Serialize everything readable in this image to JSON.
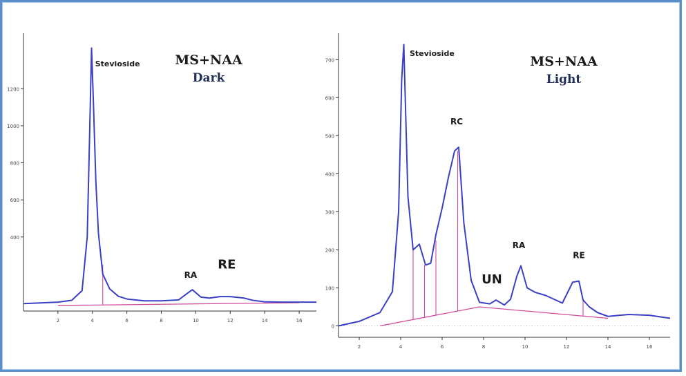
{
  "chart_data": [
    {
      "type": "line",
      "title": "MS+NAA",
      "subtitle": "Dark",
      "xlabel": "",
      "ylabel": "",
      "xlim": [
        0,
        17
      ],
      "ylim": [
        0,
        1500
      ],
      "x_ticks": [
        2,
        4,
        6,
        8,
        10,
        12,
        14,
        16
      ],
      "y_ticks": [
        400,
        600,
        800,
        1000,
        1200
      ],
      "series": [
        {
          "x": [
            0,
            1,
            2,
            2.8,
            3.4,
            3.7,
            3.85,
            3.95,
            4.05,
            4.2,
            4.35,
            4.6,
            5.0,
            5.5,
            6,
            7,
            8,
            9,
            9.5,
            9.8,
            10.3,
            10.8,
            11.4,
            12,
            12.8,
            13.3,
            14,
            15,
            16,
            17
          ],
          "y": [
            40,
            44,
            48,
            58,
            110,
            400,
            1000,
            1420,
            1150,
            700,
            420,
            200,
            120,
            80,
            65,
            55,
            55,
            60,
            95,
            115,
            75,
            70,
            78,
            78,
            70,
            58,
            50,
            48,
            48,
            48
          ]
        }
      ],
      "baseline": [
        [
          2,
          30
        ],
        [
          16,
          45
        ]
      ],
      "drop_lines": [
        {
          "x": 4.6,
          "y": 250
        }
      ],
      "annotations": [
        {
          "text": "Stevioside",
          "x": 4.0,
          "y": 1320
        },
        {
          "text": "RA",
          "x": 9.7,
          "y": 180
        },
        {
          "text": "RE",
          "x": 11.8,
          "y": 230
        }
      ]
    },
    {
      "type": "line",
      "title": "MS+NAA",
      "subtitle": "Light",
      "xlabel": "",
      "ylabel": "",
      "xlim": [
        1,
        17
      ],
      "ylim": [
        -30,
        770
      ],
      "x_ticks": [
        2,
        4,
        6,
        8,
        10,
        12,
        14,
        16
      ],
      "y_ticks": [
        0,
        100,
        200,
        300,
        400,
        500,
        600,
        700
      ],
      "series": [
        {
          "x": [
            1,
            2,
            3,
            3.6,
            3.9,
            4.05,
            4.15,
            4.35,
            4.6,
            4.9,
            5.2,
            5.45,
            5.7,
            6.0,
            6.3,
            6.6,
            6.8,
            7.05,
            7.4,
            7.8,
            8.3,
            8.6,
            9.0,
            9.3,
            9.6,
            9.8,
            10.1,
            10.5,
            11,
            11.8,
            12.3,
            12.6,
            12.8,
            13.1,
            13.5,
            14,
            15,
            16,
            17
          ],
          "y": [
            0,
            12,
            35,
            90,
            300,
            650,
            740,
            340,
            200,
            215,
            160,
            165,
            240,
            310,
            390,
            460,
            470,
            270,
            120,
            62,
            58,
            68,
            55,
            70,
            130,
            158,
            100,
            88,
            80,
            60,
            115,
            118,
            68,
            50,
            35,
            25,
            30,
            28,
            20
          ]
        }
      ],
      "baseline": [
        [
          3,
          0
        ],
        [
          7.8,
          50
        ],
        [
          14,
          20
        ]
      ],
      "drop_lines": [
        {
          "x": 4.6,
          "y": 200
        },
        {
          "x": 5.15,
          "y": 160
        },
        {
          "x": 5.7,
          "y": 225
        },
        {
          "x": 6.75,
          "y": 460
        },
        {
          "x": 12.8,
          "y": 70
        }
      ],
      "annotations": [
        {
          "text": "Stevioside",
          "x": 4.3,
          "y": 710
        },
        {
          "text": "RC",
          "x": 6.7,
          "y": 530
        },
        {
          "text": "UN",
          "x": 8.4,
          "y": 112
        },
        {
          "text": "RA",
          "x": 9.7,
          "y": 205
        },
        {
          "text": "RE",
          "x": 12.6,
          "y": 178
        }
      ]
    }
  ],
  "colors": {
    "trace": "#3b3fc4",
    "baseline": "#d04a9a",
    "axis": "#333333",
    "frame": "#5b8fc9",
    "grid_dotted": "#b8b8b8"
  }
}
